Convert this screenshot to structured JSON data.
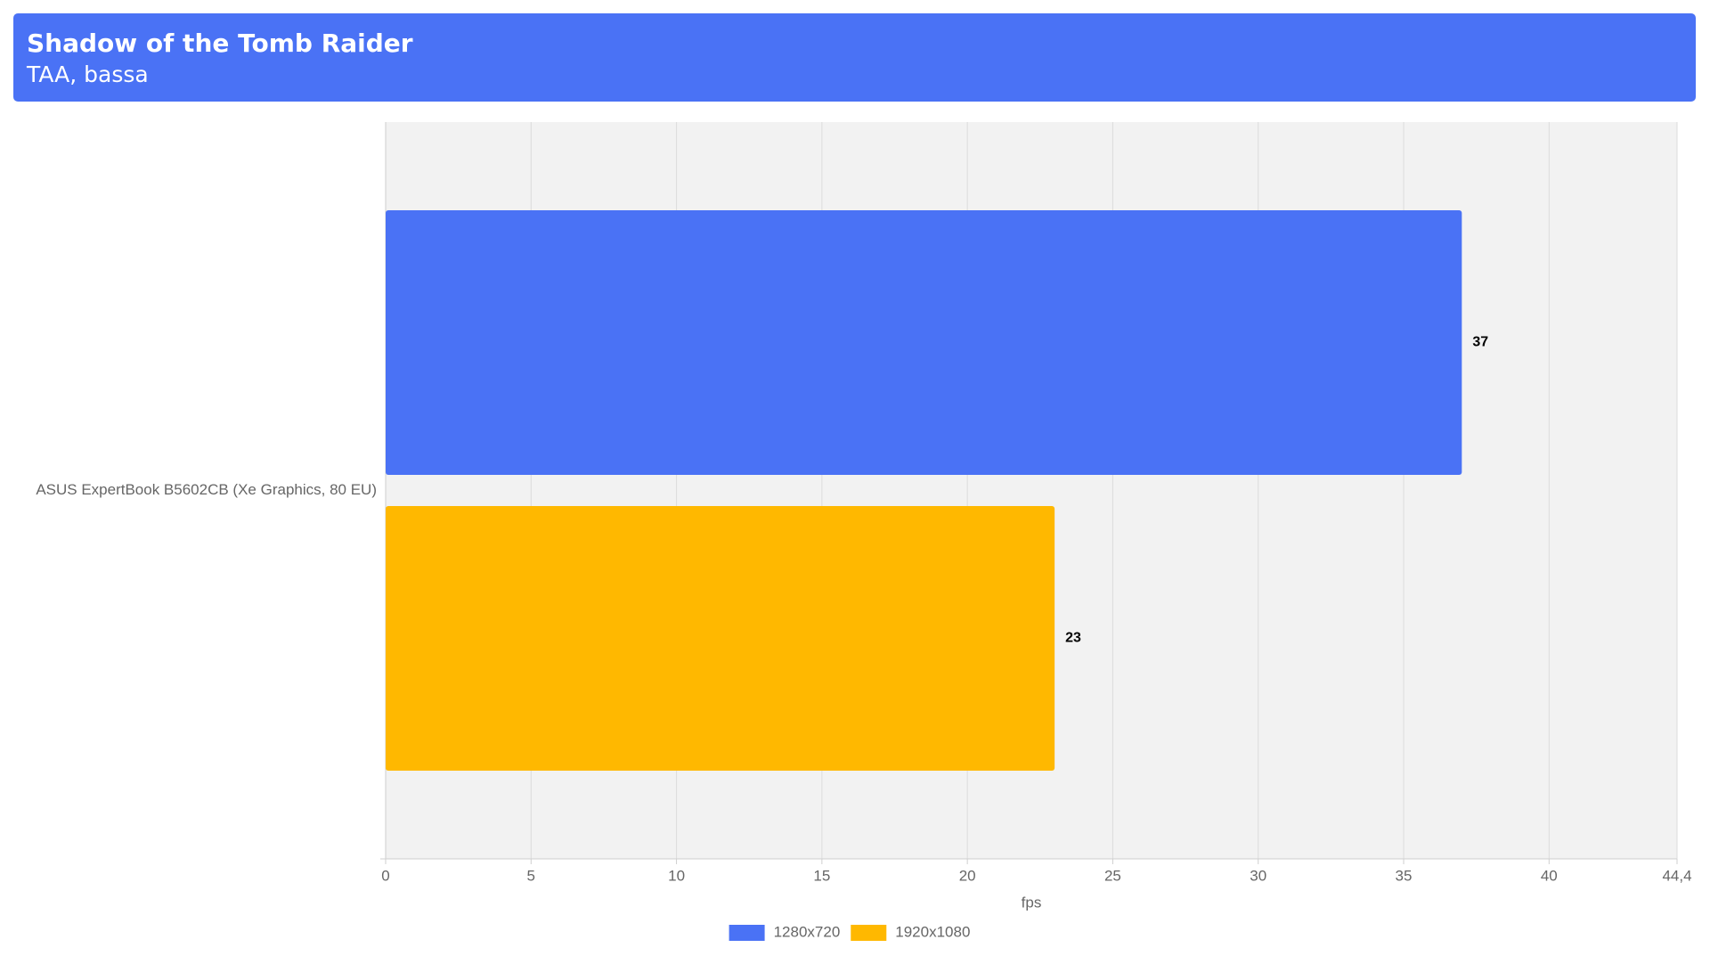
{
  "chart_data": {
    "type": "bar",
    "orientation": "horizontal",
    "title": "Shadow of the Tomb Raider",
    "subtitle": "TAA, bassa",
    "categories": [
      "ASUS ExpertBook B5602CB (Xe Graphics, 80 EU)"
    ],
    "series": [
      {
        "name": "1280x720",
        "color": "#4a72f5",
        "values": [
          37
        ]
      },
      {
        "name": "1920x1080",
        "color": "#ffb800",
        "values": [
          23
        ]
      }
    ],
    "xlabel": "fps",
    "xlim": [
      0,
      44.4
    ],
    "xticks": [
      0,
      5,
      10,
      15,
      20,
      25,
      30,
      35,
      40,
      {
        "value": 44.4,
        "label": "44,4"
      }
    ],
    "grid": true,
    "legend": "bottom"
  }
}
